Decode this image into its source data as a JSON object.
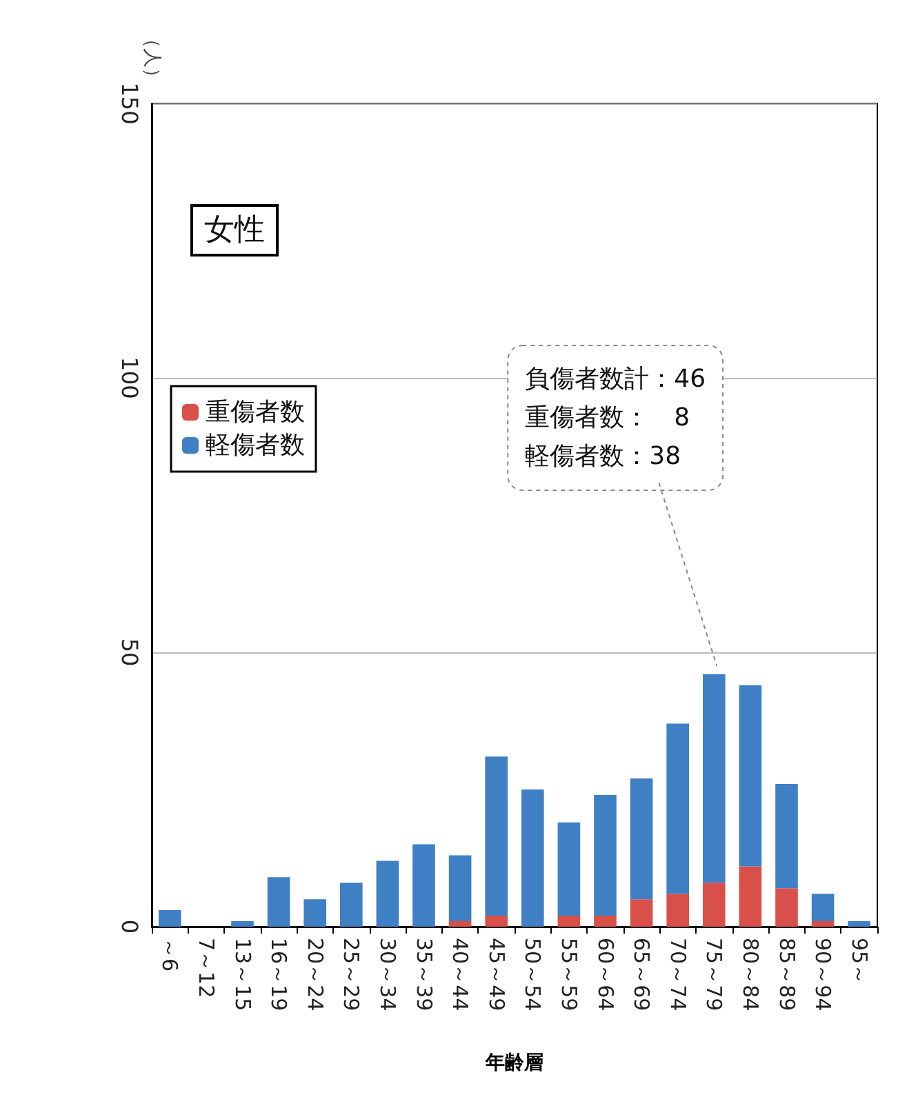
{
  "chart_data": {
    "type": "bar",
    "stacked": true,
    "xlabel": "年齢層",
    "ylabel": "（人）",
    "categories": [
      "～6",
      "7～12",
      "13～15",
      "16～19",
      "20～24",
      "25～29",
      "30～34",
      "35～39",
      "40～44",
      "45～49",
      "50～54",
      "55～59",
      "60～64",
      "65～69",
      "70～74",
      "75～79",
      "80～84",
      "85～89",
      "90～94",
      "95～"
    ],
    "series": [
      {
        "name": "重傷者数",
        "color": "#d9504a",
        "values": [
          0,
          0,
          0,
          0,
          0,
          0,
          0,
          0,
          1,
          2,
          0,
          2,
          2,
          5,
          6,
          8,
          11,
          7,
          1,
          0
        ]
      },
      {
        "name": "軽傷者数",
        "color": "#3f7fc4",
        "values": [
          3,
          0,
          1,
          9,
          5,
          8,
          12,
          15,
          12,
          29,
          25,
          17,
          22,
          22,
          31,
          38,
          33,
          19,
          5,
          1
        ]
      }
    ],
    "ylim": [
      0,
      150
    ],
    "yticks": [
      0,
      50,
      100,
      150
    ],
    "grid": "y",
    "legend": "top left",
    "annotations": [
      "女性",
      {
        "text": "負傷者数計：46\n重傷者数：　8\n軽傷者数：38",
        "x": "75～79",
        "y": 46
      }
    ]
  }
}
